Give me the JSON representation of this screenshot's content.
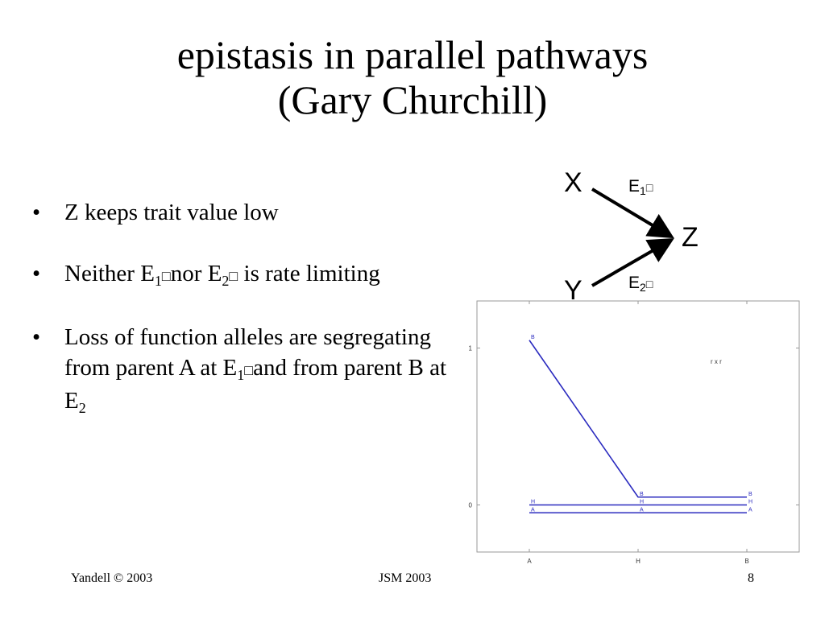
{
  "title": {
    "line1": "epistasis in parallel pathways",
    "line2": "(Gary Churchill)"
  },
  "bullets": [
    {
      "text": "Z keeps trait value low"
    },
    {
      "pre": "Neither E",
      "sub1": "1",
      "box1": "□",
      "mid": "nor E",
      "sub2": "2",
      "box2": "□",
      "post": " is rate limiting"
    },
    {
      "pre": "Loss of function alleles are segregating from parent A at E",
      "sub1": "1",
      "box1": "□",
      "post": "and from parent B at E",
      "sub2": "2"
    }
  ],
  "diagram": {
    "node_x": "X",
    "node_y": "Y",
    "node_z": "Z",
    "enzyme1": {
      "letter": "E",
      "sub": "1",
      "box": "□"
    },
    "enzyme2": {
      "letter": "E",
      "sub": "2",
      "box": "□"
    }
  },
  "chart_data": {
    "type": "line",
    "categories": [
      "A",
      "H",
      "B"
    ],
    "annotation": "r x r",
    "y_ticks": [
      "0",
      "1"
    ],
    "ylim": [
      -0.3,
      1.3
    ],
    "series": [
      {
        "values": [
          1.05,
          0.05,
          0.05
        ],
        "point_labels": [
          "B",
          "B",
          "B"
        ]
      },
      {
        "values": [
          0.0,
          0.0,
          0.0
        ],
        "point_labels": [
          "H",
          "H",
          "H"
        ]
      },
      {
        "values": [
          -0.05,
          -0.05,
          -0.05
        ],
        "point_labels": [
          "A",
          "A",
          "A"
        ]
      }
    ],
    "line_color": "#2b2bbf"
  },
  "footer": {
    "left": "Yandell © 2003",
    "center": "JSM 2003",
    "right": "8"
  }
}
